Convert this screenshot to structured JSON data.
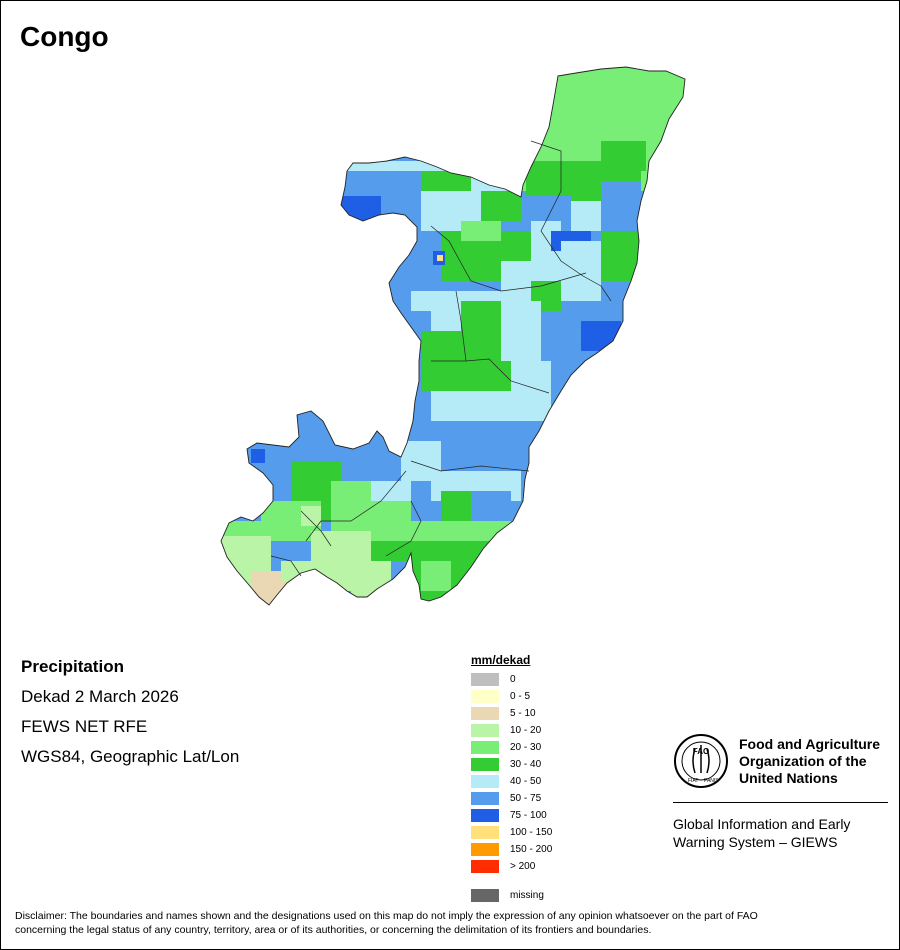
{
  "title": "Congo",
  "info": {
    "variable": "Precipitation",
    "period": "Dekad 2 March 2026",
    "source": "FEWS NET RFE",
    "projection": "WGS84, Geographic Lat/Lon"
  },
  "legend": {
    "title": "mm/dekad",
    "classes": [
      {
        "label": "0",
        "color": "#bfbfbf"
      },
      {
        "label": "0 - 5",
        "color": "#ffffc8"
      },
      {
        "label": "5 - 10",
        "color": "#ead7b4"
      },
      {
        "label": "10 - 20",
        "color": "#b9f4a7"
      },
      {
        "label": "20 - 30",
        "color": "#79ee77"
      },
      {
        "label": "30 - 40",
        "color": "#33cc33"
      },
      {
        "label": "40 - 50",
        "color": "#b5ebf6"
      },
      {
        "label": "50 - 75",
        "color": "#559cec"
      },
      {
        "label": "75 - 100",
        "color": "#1f5fe6"
      },
      {
        "label": "100 - 150",
        "color": "#ffe07a"
      },
      {
        "label": "150 - 200",
        "color": "#ff9a00"
      },
      {
        "label": "> 200",
        "color": "#ff2d00"
      }
    ],
    "missing": {
      "label": "missing",
      "color": "#666666"
    }
  },
  "org": {
    "name_line1": "Food and Agriculture",
    "name_line2": "Organization of the",
    "name_line3": "United Nations",
    "logo_letters": "FAO",
    "logo_motto_left": "FIAT",
    "logo_motto_right": "PANIS",
    "system_line1": "Global Information and Early",
    "system_line2": "Warning System – GIEWS"
  },
  "disclaimer_line1": "Disclaimer: The boundaries and names shown and the designations used on this map do not imply the expression of any opinion whatsoever on the part of FAO",
  "disclaimer_line2": "concerning the legal status of any country, territory, area or of its authorities, or concerning the delimitation of its frontiers and boundaries."
}
